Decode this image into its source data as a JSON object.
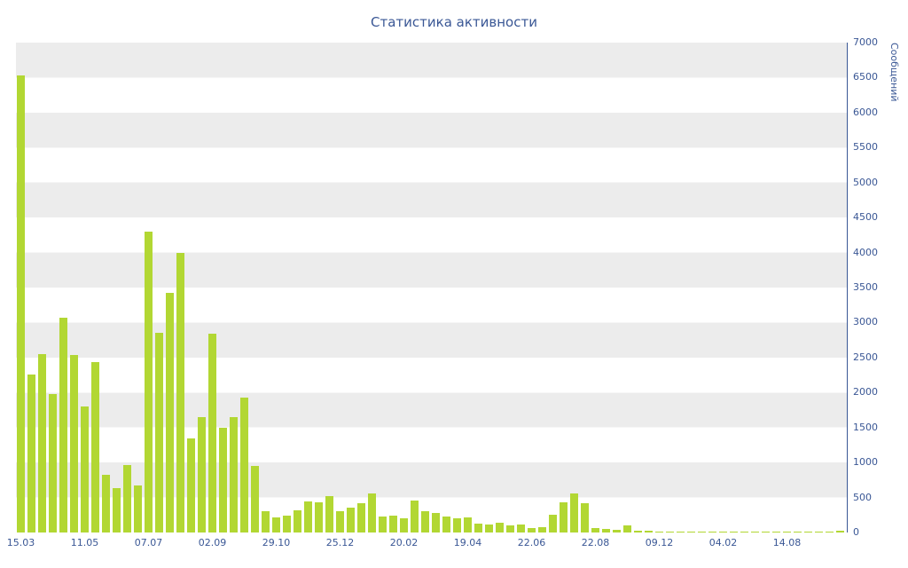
{
  "page": {
    "title": "Статистика активности"
  },
  "chart_data": {
    "type": "bar",
    "title": "Статистика активности",
    "xlabel": "",
    "ylabel": "Сообщений",
    "ylim": [
      0,
      7000
    ],
    "y_tick_step": 500,
    "y_ticks": [
      0,
      500,
      1000,
      1500,
      2000,
      2500,
      3000,
      3500,
      4000,
      4500,
      5000,
      5500,
      6000,
      6500,
      7000
    ],
    "x_tick_labels": [
      "15.03",
      "11.05",
      "07.07",
      "02.09",
      "29.10",
      "25.12",
      "20.02",
      "19.04",
      "22.06",
      "22.08",
      "09.12",
      "04.02",
      "14.08"
    ],
    "bars_per_tick": 6,
    "values": [
      6530,
      2260,
      2550,
      1980,
      3070,
      2540,
      1800,
      2430,
      830,
      640,
      960,
      670,
      4300,
      2850,
      3430,
      4000,
      1350,
      1650,
      2840,
      1500,
      1650,
      1930,
      950,
      310,
      220,
      240,
      320,
      450,
      430,
      520,
      300,
      350,
      420,
      560,
      230,
      240,
      200,
      460,
      310,
      280,
      230,
      200,
      210,
      130,
      120,
      140,
      100,
      120,
      60,
      80,
      250,
      430,
      560,
      420,
      60,
      50,
      40,
      100,
      30,
      20,
      10,
      8,
      12,
      8,
      10,
      8,
      8,
      10,
      8,
      8,
      12,
      8,
      10,
      8,
      12,
      10,
      15,
      20
    ],
    "legend": "none",
    "layout": {
      "y_axis_side": "right",
      "grid": "horizontal-bands",
      "band_height_units": 500
    },
    "colors": {
      "bar": "#b2d733",
      "axis_text": "#3a5795",
      "band_gray": "#ececec",
      "band_white": "#ffffff",
      "background": "#ffffff"
    }
  }
}
